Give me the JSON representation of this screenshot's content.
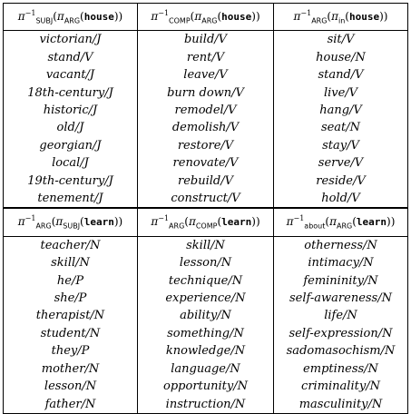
{
  "blocks": [
    {
      "headers": [
        {
          "inv": "−1",
          "sub": "SUBJ",
          "arg_sub": "ARG",
          "word": "house"
        },
        {
          "inv": "−1",
          "sub": "COMP",
          "arg_sub": "ARG",
          "word": "house"
        },
        {
          "inv": "−1",
          "sub": "ARG",
          "arg_sub": "in",
          "word": "house"
        }
      ],
      "rows": [
        [
          "victorian/J",
          "build/V",
          "sit/V"
        ],
        [
          "stand/V",
          "rent/V",
          "house/N"
        ],
        [
          "vacant/J",
          "leave/V",
          "stand/V"
        ],
        [
          "18th-century/J",
          "burn down/V",
          "live/V"
        ],
        [
          "historic/J",
          "remodel/V",
          "hang/V"
        ],
        [
          "old/J",
          "demolish/V",
          "seat/N"
        ],
        [
          "georgian/J",
          "restore/V",
          "stay/V"
        ],
        [
          "local/J",
          "renovate/V",
          "serve/V"
        ],
        [
          "19th-century/J",
          "rebuild/V",
          "reside/V"
        ],
        [
          "tenement/J",
          "construct/V",
          "hold/V"
        ]
      ]
    },
    {
      "headers": [
        {
          "inv": "−1",
          "sub": "ARG",
          "arg_sub": "SUBJ",
          "word": "learn"
        },
        {
          "inv": "−1",
          "sub": "ARG",
          "arg_sub": "COMP",
          "word": "learn"
        },
        {
          "inv": "−1",
          "sub": "about",
          "arg_sub": "ARG",
          "word": "learn"
        }
      ],
      "rows": [
        [
          "teacher/N",
          "skill/N",
          "otherness/N"
        ],
        [
          "skill/N",
          "lesson/N",
          "intimacy/N"
        ],
        [
          "he/P",
          "technique/N",
          "femininity/N"
        ],
        [
          "she/P",
          "experience/N",
          "self-awareness/N"
        ],
        [
          "therapist/N",
          "ability/N",
          "life/N"
        ],
        [
          "student/N",
          "something/N",
          "self-expression/N"
        ],
        [
          "they/P",
          "knowledge/N",
          "sadomasochism/N"
        ],
        [
          "mother/N",
          "language/N",
          "emptiness/N"
        ],
        [
          "lesson/N",
          "opportunity/N",
          "criminality/N"
        ],
        [
          "father/N",
          "instruction/N",
          "masculinity/N"
        ]
      ]
    }
  ]
}
